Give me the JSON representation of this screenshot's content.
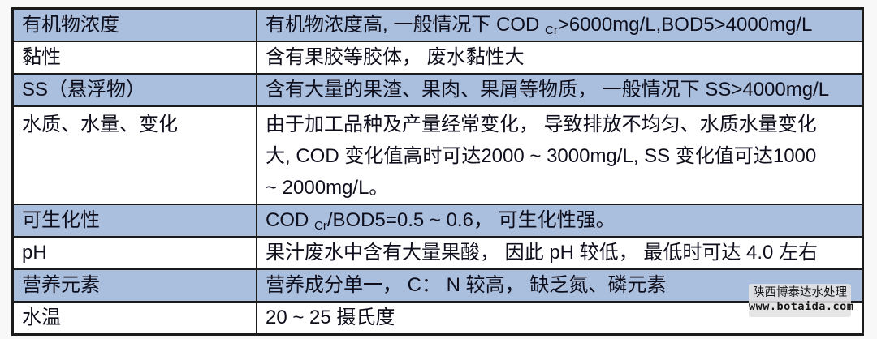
{
  "table": {
    "rows": [
      {
        "term": "有机物浓度",
        "desc_pre": "有机物浓度高, 一般情况下 COD ",
        "desc_sub": "Cr",
        "desc_post": ">6000mg/L,BOD5>4000mg/L"
      },
      {
        "term": "黏性",
        "desc": "含有果胶等胶体， 废水黏性大"
      },
      {
        "term": "SS（悬浮物）",
        "desc": "含有大量的果渣、果肉、果屑等物质， 一般情况下 SS>4000mg/L"
      },
      {
        "term": "水质、水量、变化",
        "lines": [
          "由于加工品种及产量经常变化， 导致排放不均匀、水质水量变化",
          "大, COD 变化值高时可达2000 ~ 3000mg/L, SS 变化值可达1000",
          "~ 2000mg/L。"
        ]
      },
      {
        "term": "可生化性",
        "desc_pre": "COD ",
        "desc_sub": "Cr",
        "desc_post": "/BOD5=0.5 ~ 0.6， 可生化性强。"
      },
      {
        "term": "pH",
        "desc": "果汁废水中含有大量果酸， 因此 pH 较低， 最低时可达 4.0 左右"
      },
      {
        "term": "营养元素",
        "desc": "营养成分单一， C： N 较高， 缺乏氮、磷元素"
      },
      {
        "term": "水温",
        "desc": "20 ~ 25 摄氏度"
      }
    ]
  },
  "watermark": {
    "line1": "陕西博泰达水处理",
    "line2": "www.botaida.com"
  },
  "colors": {
    "row_highlight": "#aabfde",
    "row_plain": "#ffffff",
    "border": "#1b1b1b",
    "text": "#0e0e1c"
  }
}
